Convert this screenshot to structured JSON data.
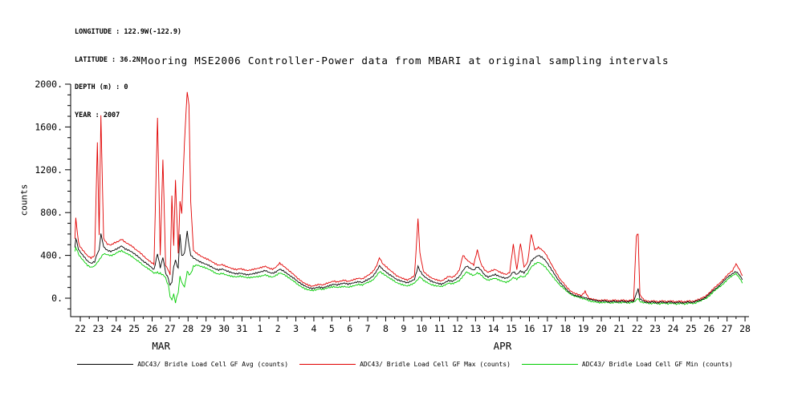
{
  "metadata": {
    "longitude": "LONGITUDE : 122.9W(-122.9)",
    "latitude": "LATITUDE : 36.2N",
    "depth": "DEPTH (m) : 0",
    "year": "YEAR : 2007"
  },
  "chart_data": {
    "type": "line",
    "title": "Mooring MSE2006 Controller-Power data from MBARI at original sampling intervals",
    "xlabel": "",
    "ylabel": "counts",
    "grid": false,
    "legend_position": "bottom",
    "ylim": [
      -172,
      2000
    ],
    "xlim": [
      0.46,
      38.3
    ],
    "yticks": [
      {
        "v": 0,
        "label": "0."
      },
      {
        "v": 400,
        "label": "400."
      },
      {
        "v": 800,
        "label": "800."
      },
      {
        "v": 1200,
        "label": "1200."
      },
      {
        "v": 1600,
        "label": "1600."
      },
      {
        "v": 2000,
        "label": "2000."
      }
    ],
    "xticks": [
      {
        "v": 1,
        "label": "22"
      },
      {
        "v": 2,
        "label": "23"
      },
      {
        "v": 3,
        "label": "24"
      },
      {
        "v": 4,
        "label": "25"
      },
      {
        "v": 5,
        "label": "26"
      },
      {
        "v": 6,
        "label": "27"
      },
      {
        "v": 7,
        "label": "28"
      },
      {
        "v": 8,
        "label": "29"
      },
      {
        "v": 9,
        "label": "30"
      },
      {
        "v": 10,
        "label": "31"
      },
      {
        "v": 11,
        "label": "1"
      },
      {
        "v": 12,
        "label": "2"
      },
      {
        "v": 13,
        "label": "3"
      },
      {
        "v": 14,
        "label": "4"
      },
      {
        "v": 15,
        "label": "5"
      },
      {
        "v": 16,
        "label": "6"
      },
      {
        "v": 17,
        "label": "7"
      },
      {
        "v": 18,
        "label": "8"
      },
      {
        "v": 19,
        "label": "9"
      },
      {
        "v": 20,
        "label": "10"
      },
      {
        "v": 21,
        "label": "11"
      },
      {
        "v": 22,
        "label": "12"
      },
      {
        "v": 23,
        "label": "13"
      },
      {
        "v": 24,
        "label": "14"
      },
      {
        "v": 25,
        "label": "15"
      },
      {
        "v": 26,
        "label": "16"
      },
      {
        "v": 27,
        "label": "17"
      },
      {
        "v": 28,
        "label": "18"
      },
      {
        "v": 29,
        "label": "19"
      },
      {
        "v": 30,
        "label": "20"
      },
      {
        "v": 31,
        "label": "21"
      },
      {
        "v": 32,
        "label": "22"
      },
      {
        "v": 33,
        "label": "23"
      },
      {
        "v": 34,
        "label": "24"
      },
      {
        "v": 35,
        "label": "25"
      },
      {
        "v": 36,
        "label": "26"
      },
      {
        "v": 37,
        "label": "27"
      },
      {
        "v": 38,
        "label": "28"
      }
    ],
    "month_labels": [
      {
        "label": "MAR",
        "v": 5.5
      },
      {
        "label": "APR",
        "v": 24.5
      }
    ],
    "columns": [
      "day_axis_value",
      "avg",
      "max",
      "min"
    ],
    "series": [
      {
        "name": "ADC43/ Bridle Load Cell GF Avg (counts)",
        "color": "#000000",
        "col": 1
      },
      {
        "name": "ADC43/ Bridle Load Cell GF Max (counts)",
        "color": "#e10000",
        "col": 2
      },
      {
        "name": "ADC43/ Bridle Load Cell GF Min (counts)",
        "color": "#00cc00",
        "col": 3
      }
    ],
    "points": [
      [
        0.7,
        480,
        560,
        430
      ],
      [
        0.75,
        560,
        750,
        480
      ],
      [
        0.9,
        460,
        520,
        410
      ],
      [
        1.0,
        430,
        480,
        390
      ],
      [
        1.2,
        390,
        440,
        350
      ],
      [
        1.4,
        350,
        400,
        310
      ],
      [
        1.6,
        330,
        380,
        290
      ],
      [
        1.8,
        345,
        400,
        300
      ],
      [
        1.95,
        420,
        1450,
        330
      ],
      [
        2.05,
        450,
        600,
        360
      ],
      [
        2.15,
        600,
        1700,
        380
      ],
      [
        2.3,
        480,
        560,
        420
      ],
      [
        2.5,
        450,
        510,
        410
      ],
      [
        2.7,
        440,
        500,
        400
      ],
      [
        2.9,
        455,
        520,
        410
      ],
      [
        3.1,
        470,
        530,
        430
      ],
      [
        3.3,
        490,
        550,
        440
      ],
      [
        3.5,
        460,
        520,
        420
      ],
      [
        3.7,
        445,
        500,
        405
      ],
      [
        3.9,
        425,
        480,
        385
      ],
      [
        4.1,
        400,
        450,
        360
      ],
      [
        4.3,
        375,
        430,
        340
      ],
      [
        4.5,
        345,
        400,
        310
      ],
      [
        4.7,
        325,
        370,
        290
      ],
      [
        4.9,
        300,
        345,
        265
      ],
      [
        5.1,
        270,
        320,
        235
      ],
      [
        5.3,
        420,
        1690,
        240
      ],
      [
        5.45,
        280,
        400,
        230
      ],
      [
        5.6,
        380,
        1300,
        220
      ],
      [
        5.75,
        240,
        310,
        190
      ],
      [
        5.9,
        180,
        260,
        120
      ],
      [
        6.0,
        120,
        220,
        20
      ],
      [
        6.1,
        150,
        950,
        -20
      ],
      [
        6.2,
        300,
        500,
        40
      ],
      [
        6.3,
        350,
        1100,
        -40
      ],
      [
        6.45,
        280,
        420,
        60
      ],
      [
        6.55,
        600,
        900,
        200
      ],
      [
        6.65,
        400,
        800,
        150
      ],
      [
        6.8,
        420,
        1460,
        100
      ],
      [
        6.95,
        620,
        1930,
        250
      ],
      [
        7.05,
        500,
        1800,
        220
      ],
      [
        7.15,
        400,
        900,
        230
      ],
      [
        7.3,
        380,
        450,
        300
      ],
      [
        7.5,
        360,
        420,
        310
      ],
      [
        7.7,
        340,
        395,
        295
      ],
      [
        7.9,
        325,
        375,
        285
      ],
      [
        8.1,
        310,
        360,
        270
      ],
      [
        8.3,
        290,
        340,
        255
      ],
      [
        8.5,
        270,
        320,
        235
      ],
      [
        8.7,
        260,
        305,
        225
      ],
      [
        8.9,
        270,
        315,
        235
      ],
      [
        9.1,
        258,
        300,
        222
      ],
      [
        9.3,
        248,
        290,
        214
      ],
      [
        9.5,
        238,
        278,
        205
      ],
      [
        9.7,
        232,
        270,
        200
      ],
      [
        9.9,
        238,
        278,
        205
      ],
      [
        10.1,
        228,
        266,
        196
      ],
      [
        10.3,
        218,
        256,
        188
      ],
      [
        10.5,
        222,
        260,
        190
      ],
      [
        10.7,
        228,
        268,
        196
      ],
      [
        10.9,
        236,
        276,
        202
      ],
      [
        11.1,
        245,
        288,
        210
      ],
      [
        11.3,
        258,
        300,
        222
      ],
      [
        11.5,
        242,
        284,
        208
      ],
      [
        11.7,
        235,
        275,
        200
      ],
      [
        11.9,
        250,
        295,
        215
      ],
      [
        12.1,
        275,
        330,
        235
      ],
      [
        12.3,
        258,
        302,
        222
      ],
      [
        12.5,
        232,
        272,
        200
      ],
      [
        12.7,
        205,
        242,
        175
      ],
      [
        12.9,
        182,
        215,
        155
      ],
      [
        13.1,
        152,
        182,
        128
      ],
      [
        13.3,
        130,
        158,
        108
      ],
      [
        13.5,
        112,
        138,
        92
      ],
      [
        13.7,
        100,
        125,
        82
      ],
      [
        13.9,
        92,
        115,
        75
      ],
      [
        14.1,
        100,
        125,
        80
      ],
      [
        14.3,
        108,
        132,
        88
      ],
      [
        14.5,
        100,
        124,
        80
      ],
      [
        14.7,
        110,
        136,
        90
      ],
      [
        14.9,
        118,
        145,
        96
      ],
      [
        15.1,
        128,
        156,
        105
      ],
      [
        15.3,
        120,
        148,
        98
      ],
      [
        15.5,
        130,
        158,
        106
      ],
      [
        15.7,
        138,
        168,
        112
      ],
      [
        15.9,
        130,
        158,
        106
      ],
      [
        16.1,
        140,
        170,
        115
      ],
      [
        16.3,
        150,
        182,
        122
      ],
      [
        16.5,
        158,
        190,
        130
      ],
      [
        16.7,
        150,
        182,
        122
      ],
      [
        16.9,
        168,
        202,
        138
      ],
      [
        17.1,
        182,
        220,
        150
      ],
      [
        17.3,
        205,
        248,
        168
      ],
      [
        17.5,
        252,
        300,
        210
      ],
      [
        17.65,
        300,
        380,
        250
      ],
      [
        17.8,
        278,
        330,
        232
      ],
      [
        18.0,
        250,
        298,
        210
      ],
      [
        18.2,
        222,
        265,
        185
      ],
      [
        18.4,
        200,
        238,
        166
      ],
      [
        18.6,
        172,
        206,
        142
      ],
      [
        18.8,
        160,
        192,
        132
      ],
      [
        19.0,
        150,
        180,
        124
      ],
      [
        19.2,
        142,
        170,
        117
      ],
      [
        19.4,
        158,
        190,
        130
      ],
      [
        19.6,
        178,
        215,
        146
      ],
      [
        19.8,
        300,
        750,
        180
      ],
      [
        19.9,
        255,
        420,
        200
      ],
      [
        20.1,
        205,
        248,
        168
      ],
      [
        20.3,
        182,
        220,
        150
      ],
      [
        20.5,
        162,
        196,
        133
      ],
      [
        20.7,
        150,
        182,
        123
      ],
      [
        20.9,
        142,
        172,
        116
      ],
      [
        21.1,
        135,
        164,
        110
      ],
      [
        21.3,
        150,
        182,
        122
      ],
      [
        21.5,
        168,
        204,
        138
      ],
      [
        21.7,
        158,
        192,
        130
      ],
      [
        21.9,
        175,
        212,
        144
      ],
      [
        22.1,
        200,
        260,
        162
      ],
      [
        22.3,
        255,
        400,
        205
      ],
      [
        22.5,
        298,
        360,
        248
      ],
      [
        22.7,
        278,
        335,
        230
      ],
      [
        22.9,
        262,
        315,
        216
      ],
      [
        23.1,
        298,
        455,
        240
      ],
      [
        23.3,
        268,
        325,
        222
      ],
      [
        23.5,
        222,
        268,
        184
      ],
      [
        23.7,
        200,
        242,
        165
      ],
      [
        23.9,
        212,
        256,
        175
      ],
      [
        24.1,
        220,
        265,
        182
      ],
      [
        24.3,
        202,
        244,
        167
      ],
      [
        24.5,
        190,
        230,
        157
      ],
      [
        24.7,
        182,
        220,
        150
      ],
      [
        24.9,
        200,
        242,
        165
      ],
      [
        25.1,
        248,
        505,
        198
      ],
      [
        25.3,
        222,
        268,
        182
      ],
      [
        25.5,
        258,
        520,
        208
      ],
      [
        25.7,
        242,
        292,
        198
      ],
      [
        25.9,
        280,
        340,
        230
      ],
      [
        26.1,
        348,
        600,
        288
      ],
      [
        26.3,
        378,
        450,
        315
      ],
      [
        26.5,
        398,
        470,
        332
      ],
      [
        26.7,
        378,
        448,
        315
      ],
      [
        26.9,
        348,
        415,
        290
      ],
      [
        27.1,
        298,
        355,
        248
      ],
      [
        27.3,
        248,
        296,
        206
      ],
      [
        27.5,
        198,
        238,
        164
      ],
      [
        27.7,
        150,
        182,
        124
      ],
      [
        27.9,
        118,
        145,
        96
      ],
      [
        28.1,
        78,
        100,
        60
      ],
      [
        28.3,
        48,
        66,
        34
      ],
      [
        28.5,
        28,
        44,
        16
      ],
      [
        28.7,
        18,
        32,
        8
      ],
      [
        28.9,
        8,
        20,
        -2
      ],
      [
        29.1,
        0,
        60,
        -10
      ],
      [
        29.3,
        -12,
        -2,
        -22
      ],
      [
        29.5,
        -18,
        -8,
        -28
      ],
      [
        29.7,
        -22,
        -12,
        -32
      ],
      [
        29.9,
        -28,
        -18,
        -38
      ],
      [
        30.2,
        -30,
        -20,
        -40
      ],
      [
        30.6,
        -32,
        -22,
        -42
      ],
      [
        31.0,
        -30,
        -20,
        -40
      ],
      [
        31.4,
        -32,
        -22,
        -42
      ],
      [
        31.8,
        -30,
        -20,
        -40
      ],
      [
        31.95,
        40,
        580,
        -20
      ],
      [
        32.05,
        90,
        600,
        0
      ],
      [
        32.15,
        -10,
        30,
        -30
      ],
      [
        32.4,
        -35,
        -25,
        -45
      ],
      [
        32.8,
        -38,
        -28,
        -48
      ],
      [
        33.2,
        -40,
        -30,
        -50
      ],
      [
        33.6,
        -38,
        -28,
        -48
      ],
      [
        34.0,
        -40,
        -30,
        -50
      ],
      [
        34.4,
        -42,
        -32,
        -52
      ],
      [
        34.8,
        -40,
        -30,
        -50
      ],
      [
        35.2,
        -35,
        -25,
        -45
      ],
      [
        35.5,
        -20,
        -10,
        -30
      ],
      [
        35.8,
        10,
        22,
        -2
      ],
      [
        36.1,
        48,
        62,
        36
      ],
      [
        36.4,
        95,
        112,
        80
      ],
      [
        36.7,
        142,
        162,
        125
      ],
      [
        37.0,
        188,
        210,
        168
      ],
      [
        37.3,
        232,
        258,
        210
      ],
      [
        37.5,
        252,
        320,
        225
      ],
      [
        37.7,
        215,
        262,
        185
      ],
      [
        37.85,
        172,
        210,
        140
      ]
    ]
  }
}
